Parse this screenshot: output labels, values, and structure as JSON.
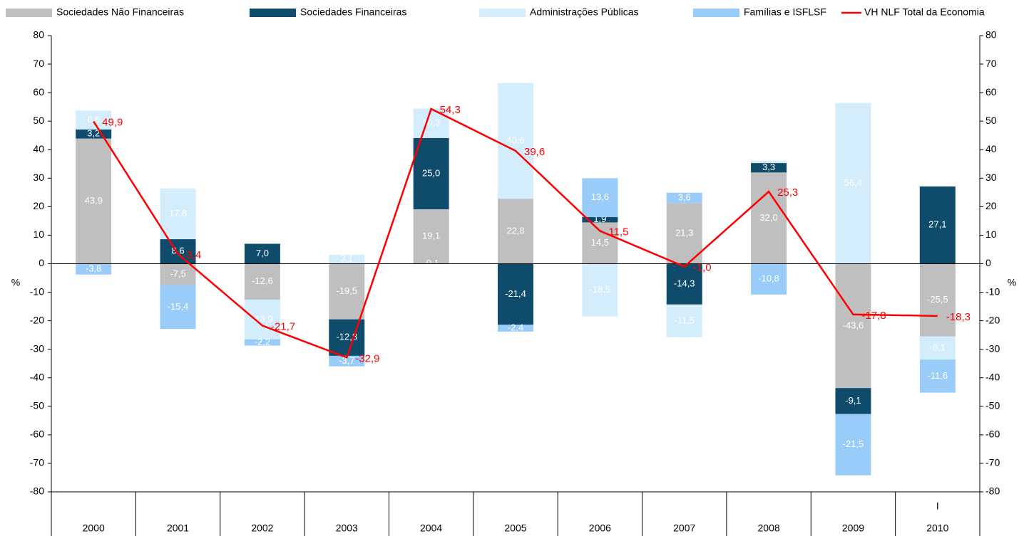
{
  "chart_data": {
    "type": "stacked_bar_line",
    "categories": [
      "2000",
      "2001",
      "2002",
      "2003",
      "2004",
      "2005",
      "2006",
      "2007",
      "2008",
      "2009",
      "2010"
    ],
    "period_labels": [
      null,
      null,
      null,
      null,
      null,
      null,
      null,
      null,
      null,
      null,
      "I"
    ],
    "y_label": "%",
    "y2_label": "%",
    "ylim": [
      -80,
      80
    ],
    "yticks": [
      -80,
      -70,
      -60,
      -50,
      -40,
      -30,
      -20,
      -10,
      0,
      10,
      20,
      30,
      40,
      50,
      60,
      70,
      80
    ],
    "y2lim": [
      -80,
      80
    ],
    "y2ticks": [
      -80,
      -70,
      -60,
      -50,
      -40,
      -30,
      -20,
      -10,
      0,
      10,
      20,
      30,
      40,
      50,
      60,
      70,
      80
    ],
    "series": [
      {
        "name": "Sociedades Não Financeiras",
        "color": "#bfbfbf",
        "values": [
          43.9,
          -7.5,
          -12.6,
          -19.5,
          19.1,
          22.8,
          14.5,
          21.3,
          32.0,
          -43.6,
          -25.5
        ],
        "value_labels": [
          "43,9",
          "-7,5",
          "-12,6",
          "-19,5",
          "19,1",
          "22,8",
          "14,5",
          "21,3",
          "32,0",
          "-43,6",
          "-25,5"
        ]
      },
      {
        "name": "Sociedades Financeiras",
        "color": "#0f4c6b",
        "values": [
          3.2,
          8.6,
          7.0,
          -12.8,
          25.0,
          -21.4,
          1.9,
          -14.3,
          3.3,
          -9.1,
          27.1
        ],
        "value_labels": [
          "3,2",
          "8,6",
          "7,0",
          "-12,8",
          "25,0",
          "-21,4",
          "1,9",
          "-14,3",
          "3,3",
          "-9,1",
          "27,1"
        ]
      },
      {
        "name": "Administrações Públicas",
        "color": "#d3edfc",
        "values": [
          6.6,
          17.8,
          -13.9,
          3.1,
          10.3,
          40.6,
          -18.5,
          -11.5,
          0.8,
          56.4,
          -8.1
        ],
        "value_labels": [
          "6,6",
          "17,8",
          "-13,9",
          "3,1",
          "10,3",
          "40,6",
          "-18,5",
          "-11,5",
          null,
          "56,4",
          "-8,1"
        ]
      },
      {
        "name": "Famílias e ISFLSF",
        "color": "#99ccf8",
        "values": [
          -3.8,
          -15.4,
          -2.2,
          -3.7,
          -0.1,
          -2.4,
          13.6,
          3.6,
          -10.8,
          -21.5,
          -11.6
        ],
        "value_labels": [
          "-3,8",
          "-15,4",
          "-2,2",
          "-3,7",
          "-0,1",
          "-2,4",
          "13,6",
          "3,6",
          "-10,8",
          "-21,5",
          "-11,6"
        ]
      },
      {
        "name": "VH NLF Total da Economia",
        "color": "#ff0000",
        "kind": "line",
        "values": [
          49.9,
          3.4,
          -21.7,
          -32.9,
          54.3,
          39.6,
          11.5,
          -1.0,
          25.3,
          -17.8,
          -18.3
        ],
        "value_labels": [
          "49,9",
          "3,4",
          "-21,7",
          "-32,9",
          "54,3",
          "39,6",
          "11,5",
          "-1,0",
          "25,3",
          "-17,8",
          "-18,3"
        ]
      }
    ]
  }
}
